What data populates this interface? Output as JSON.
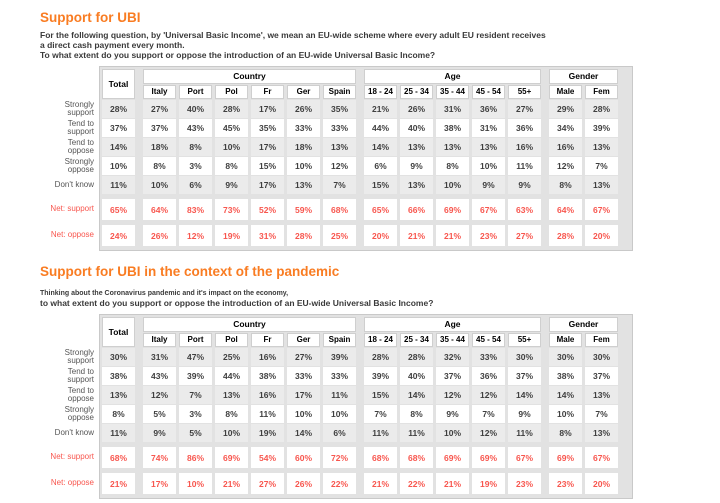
{
  "colors": {
    "accent_orange": "#f97c22",
    "net_red": "#f8564e",
    "panel_gray": "#e2e2e2",
    "stripe_gray": "#ebebeb"
  },
  "sections": [
    {
      "title": "Support for UBI",
      "intro_lines": [
        "For the following question, by 'Universal Basic Income', we mean an EU-wide scheme where every adult EU resident receives",
        "a direct cash payment every month.",
        "To what extent do you support or oppose the introduction of an EU-wide Universal Basic Income?"
      ],
      "table": {
        "header": {
          "total": "Total",
          "groups": [
            {
              "label": "Country",
              "cols": [
                "Italy",
                "Port",
                "Pol",
                "Fr",
                "Ger",
                "Spain"
              ]
            },
            {
              "label": "Age",
              "cols": [
                "18 - 24",
                "25 - 34",
                "35 - 44",
                "45 - 54",
                "55+"
              ]
            },
            {
              "label": "Gender",
              "cols": [
                "Male",
                "Fem"
              ]
            }
          ]
        },
        "rows": [
          {
            "label": "Strongly\nsupport",
            "type": "normal",
            "values": [
              "28%",
              "27%",
              "40%",
              "28%",
              "17%",
              "26%",
              "35%",
              "21%",
              "26%",
              "31%",
              "36%",
              "27%",
              "29%",
              "28%"
            ]
          },
          {
            "label": "Tend to\nsupport",
            "type": "normal",
            "values": [
              "37%",
              "37%",
              "43%",
              "45%",
              "35%",
              "33%",
              "33%",
              "44%",
              "40%",
              "38%",
              "31%",
              "36%",
              "34%",
              "39%"
            ]
          },
          {
            "label": "Tend to\noppose",
            "type": "normal",
            "values": [
              "14%",
              "18%",
              "8%",
              "10%",
              "17%",
              "18%",
              "13%",
              "14%",
              "13%",
              "13%",
              "13%",
              "16%",
              "16%",
              "13%"
            ]
          },
          {
            "label": "Strongly\noppose",
            "type": "normal",
            "values": [
              "10%",
              "8%",
              "3%",
              "8%",
              "15%",
              "10%",
              "12%",
              "6%",
              "9%",
              "8%",
              "10%",
              "11%",
              "12%",
              "7%"
            ]
          },
          {
            "label": "Don't know",
            "type": "normal",
            "values": [
              "11%",
              "10%",
              "6%",
              "9%",
              "17%",
              "13%",
              "7%",
              "15%",
              "13%",
              "10%",
              "9%",
              "9%",
              "8%",
              "13%"
            ]
          },
          {
            "label": "Net: support",
            "type": "net",
            "values": [
              "65%",
              "64%",
              "83%",
              "73%",
              "52%",
              "59%",
              "68%",
              "65%",
              "66%",
              "69%",
              "67%",
              "63%",
              "64%",
              "67%"
            ]
          },
          {
            "label": "Net: oppose",
            "type": "net",
            "values": [
              "24%",
              "26%",
              "12%",
              "19%",
              "31%",
              "28%",
              "25%",
              "20%",
              "21%",
              "21%",
              "23%",
              "27%",
              "28%",
              "20%"
            ]
          }
        ]
      }
    },
    {
      "title": "Support for UBI in the context of the pandemic",
      "intro_lines": [
        "Thinking about the Coronavirus pandemic and it's impact on the economy,",
        "to what extent do you support or oppose the introduction of an EU-wide Universal Basic Income?"
      ],
      "table": {
        "header": {
          "total": "Total",
          "groups": [
            {
              "label": "Country",
              "cols": [
                "Italy",
                "Port",
                "Pol",
                "Fr",
                "Ger",
                "Spain"
              ]
            },
            {
              "label": "Age",
              "cols": [
                "18 - 24",
                "25 - 34",
                "35 - 44",
                "45 - 54",
                "55+"
              ]
            },
            {
              "label": "Gender",
              "cols": [
                "Male",
                "Fem"
              ]
            }
          ]
        },
        "rows": [
          {
            "label": "Strongly\nsupport",
            "type": "normal",
            "values": [
              "30%",
              "31%",
              "47%",
              "25%",
              "16%",
              "27%",
              "39%",
              "28%",
              "28%",
              "32%",
              "33%",
              "30%",
              "30%",
              "30%"
            ]
          },
          {
            "label": "Tend to\nsupport",
            "type": "normal",
            "values": [
              "38%",
              "43%",
              "39%",
              "44%",
              "38%",
              "33%",
              "33%",
              "39%",
              "40%",
              "37%",
              "36%",
              "37%",
              "38%",
              "37%"
            ]
          },
          {
            "label": "Tend to\noppose",
            "type": "normal",
            "values": [
              "13%",
              "12%",
              "7%",
              "13%",
              "16%",
              "17%",
              "11%",
              "15%",
              "14%",
              "12%",
              "12%",
              "14%",
              "14%",
              "13%"
            ]
          },
          {
            "label": "Strongly\noppose",
            "type": "normal",
            "values": [
              "8%",
              "5%",
              "3%",
              "8%",
              "11%",
              "10%",
              "10%",
              "7%",
              "8%",
              "9%",
              "7%",
              "9%",
              "10%",
              "7%"
            ]
          },
          {
            "label": "Don't know",
            "type": "normal",
            "values": [
              "11%",
              "9%",
              "5%",
              "10%",
              "19%",
              "14%",
              "6%",
              "11%",
              "11%",
              "10%",
              "12%",
              "11%",
              "8%",
              "13%"
            ]
          },
          {
            "label": "Net: support",
            "type": "net",
            "values": [
              "68%",
              "74%",
              "86%",
              "69%",
              "54%",
              "60%",
              "72%",
              "68%",
              "68%",
              "69%",
              "69%",
              "67%",
              "69%",
              "67%"
            ]
          },
          {
            "label": "Net: oppose",
            "type": "net",
            "values": [
              "21%",
              "17%",
              "10%",
              "21%",
              "27%",
              "26%",
              "22%",
              "21%",
              "22%",
              "21%",
              "19%",
              "23%",
              "23%",
              "20%"
            ]
          }
        ]
      }
    }
  ]
}
